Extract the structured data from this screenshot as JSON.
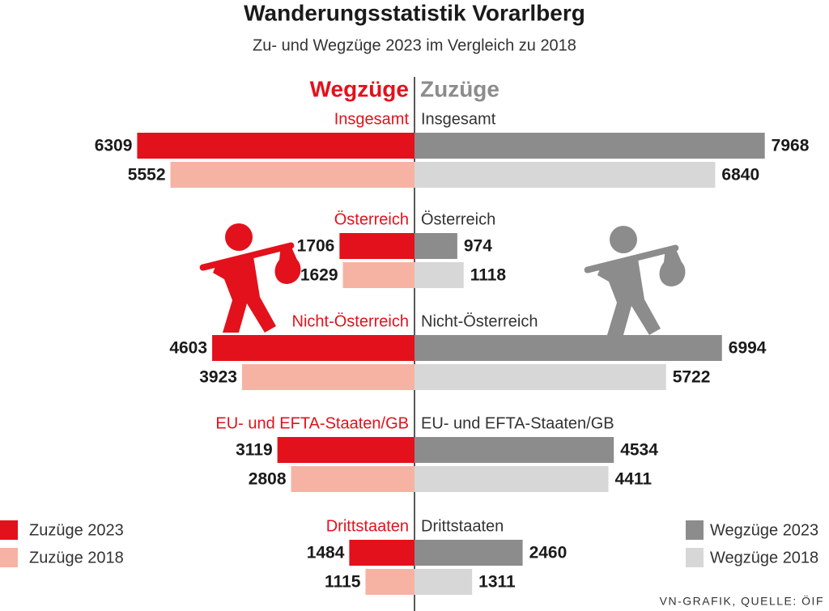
{
  "chart_data": {
    "type": "bar",
    "title": "Wanderungsstatistik Vorarlberg",
    "subtitle": "Zu- und Wegzüge 2023 im Vergleich zu 2018",
    "left_label": "Wegzüge",
    "right_label": "Zuzüge",
    "categories": [
      "Insgesamt",
      "Österreich",
      "Nicht-Österreich",
      "EU- und EFTA-Staaten/GB",
      "Drittstaaten"
    ],
    "series": [
      {
        "name": "Zuzüge 2023",
        "color": "#e3111b",
        "side": "left",
        "values": [
          6309,
          1706,
          4603,
          3119,
          1484
        ]
      },
      {
        "name": "Zuzüge 2018",
        "color": "#f6b3a3",
        "side": "left",
        "values": [
          5552,
          1629,
          3923,
          2808,
          1115
        ]
      },
      {
        "name": "Wegzüge 2023",
        "color": "#8c8c8c",
        "side": "right",
        "values": [
          7968,
          974,
          6994,
          4534,
          2460
        ]
      },
      {
        "name": "Wegzüge 2018",
        "color": "#d7d7d7",
        "side": "right",
        "values": [
          6840,
          1118,
          5722,
          4411,
          1311
        ]
      }
    ],
    "source": "VN-GRAFIK, QUELLE: ÖIF"
  }
}
